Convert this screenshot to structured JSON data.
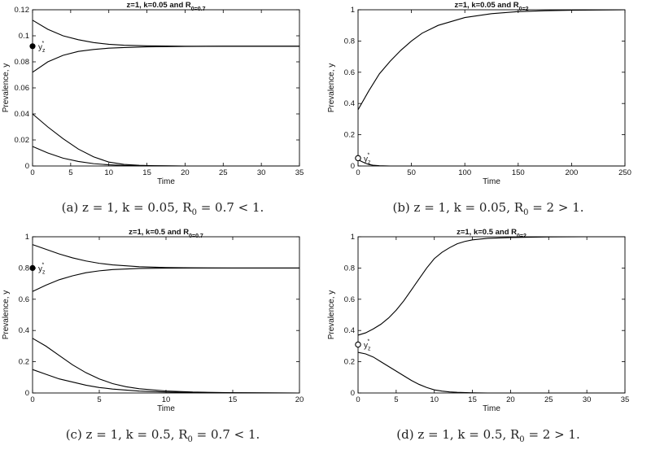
{
  "chart_data": [
    {
      "type": "line",
      "title": "z=1, k=0.05 and R_0=0.7",
      "xlabel": "Time",
      "ylabel": "Prevalence, y",
      "xlim": [
        0,
        35
      ],
      "ylim": [
        0,
        0.12
      ],
      "xticks": [
        "0",
        "5",
        "10",
        "15",
        "20",
        "25",
        "30",
        "35"
      ],
      "yticks": [
        "0",
        "0.02",
        "0.04",
        "0.06",
        "0.08",
        "0.1",
        "0.12"
      ],
      "series": [
        {
          "x": [
            0,
            2,
            4,
            6,
            8,
            10,
            12,
            15,
            20,
            25,
            30,
            35
          ],
          "y": [
            0.112,
            0.105,
            0.1,
            0.097,
            0.0948,
            0.0935,
            0.0928,
            0.0923,
            0.092,
            0.092,
            0.092,
            0.092
          ]
        },
        {
          "x": [
            0,
            2,
            4,
            6,
            8,
            10,
            12,
            15,
            20,
            25,
            30,
            35
          ],
          "y": [
            0.072,
            0.08,
            0.085,
            0.088,
            0.0895,
            0.0905,
            0.091,
            0.0915,
            0.0918,
            0.092,
            0.092,
            0.092
          ]
        },
        {
          "x": [
            0,
            2,
            4,
            6,
            8,
            10,
            12,
            14,
            16,
            20,
            25,
            35
          ],
          "y": [
            0.04,
            0.03,
            0.021,
            0.013,
            0.007,
            0.003,
            0.0012,
            0.0005,
            0.0002,
            0,
            0,
            0
          ]
        },
        {
          "x": [
            0,
            2,
            4,
            6,
            8,
            10,
            12,
            14,
            20,
            35
          ],
          "y": [
            0.015,
            0.01,
            0.006,
            0.0035,
            0.0018,
            0.0009,
            0.0004,
            0.0002,
            0,
            0
          ]
        }
      ],
      "marker": {
        "style": "filled",
        "x": 0,
        "y": 0.092,
        "label": "y_z^*"
      },
      "caption": "(a) z = 1, k = 0.05, R_0 = 0.7 < 1."
    },
    {
      "type": "line",
      "title": "z=1, k=0.05 and R_0=2",
      "xlabel": "Time",
      "ylabel": "Prevalence, y",
      "xlim": [
        0,
        250
      ],
      "ylim": [
        0,
        1
      ],
      "xticks": [
        "0",
        "50",
        "100",
        "150",
        "200",
        "250"
      ],
      "yticks": [
        "0",
        "0.2",
        "0.4",
        "0.6",
        "0.8",
        "1"
      ],
      "series": [
        {
          "x": [
            0,
            10,
            20,
            30,
            40,
            50,
            60,
            75,
            100,
            125,
            150,
            175,
            200,
            250
          ],
          "y": [
            0.36,
            0.48,
            0.59,
            0.67,
            0.74,
            0.8,
            0.85,
            0.9,
            0.95,
            0.975,
            0.988,
            0.994,
            0.997,
            1
          ]
        },
        {
          "x": [
            0,
            3,
            6,
            10,
            14,
            20,
            30,
            50,
            250
          ],
          "y": [
            0.04,
            0.03,
            0.02,
            0.01,
            0.005,
            0.002,
            0,
            0,
            0
          ]
        }
      ],
      "marker": {
        "style": "open",
        "x": 0,
        "y": 0.05,
        "label": "y_z^*"
      },
      "caption": "(b) z = 1, k = 0.05, R_0 = 2 > 1."
    },
    {
      "type": "line",
      "title": "z=1, k=0.5 and R_0=0.7",
      "xlabel": "Time",
      "ylabel": "Prevalence, y",
      "xlim": [
        0,
        20
      ],
      "ylim": [
        0,
        1
      ],
      "xticks": [
        "0",
        "5",
        "10",
        "15",
        "20"
      ],
      "yticks": [
        "0",
        "0.2",
        "0.4",
        "0.6",
        "0.8",
        "1"
      ],
      "series": [
        {
          "x": [
            0,
            1,
            2,
            3,
            4,
            5,
            6,
            8,
            10,
            12,
            15,
            20
          ],
          "y": [
            0.95,
            0.92,
            0.89,
            0.865,
            0.845,
            0.83,
            0.82,
            0.808,
            0.803,
            0.801,
            0.8,
            0.8
          ]
        },
        {
          "x": [
            0,
            1,
            2,
            3,
            4,
            5,
            6,
            8,
            10,
            12,
            15,
            20
          ],
          "y": [
            0.65,
            0.69,
            0.725,
            0.75,
            0.77,
            0.782,
            0.79,
            0.797,
            0.799,
            0.8,
            0.8,
            0.8
          ]
        },
        {
          "x": [
            0,
            1,
            2,
            3,
            4,
            5,
            6,
            7,
            8,
            10,
            12,
            15,
            20
          ],
          "y": [
            0.35,
            0.3,
            0.24,
            0.18,
            0.13,
            0.09,
            0.06,
            0.04,
            0.027,
            0.013,
            0.006,
            0.002,
            0
          ]
        },
        {
          "x": [
            0,
            1,
            2,
            3,
            4,
            5,
            6,
            8,
            10,
            12,
            15,
            20
          ],
          "y": [
            0.15,
            0.12,
            0.09,
            0.07,
            0.05,
            0.035,
            0.025,
            0.012,
            0.006,
            0.003,
            0.001,
            0
          ]
        }
      ],
      "marker": {
        "style": "filled",
        "x": 0,
        "y": 0.8,
        "label": "y_z^*"
      },
      "caption": "(c) z = 1, k = 0.5, R_0 = 0.7 < 1."
    },
    {
      "type": "line",
      "title": "z=1, k=0.5 and R_0=2",
      "xlabel": "Time",
      "ylabel": "Prevalence, y",
      "xlim": [
        0,
        35
      ],
      "ylim": [
        0,
        1
      ],
      "xticks": [
        "0",
        "5",
        "10",
        "15",
        "20",
        "25",
        "30",
        "35"
      ],
      "yticks": [
        "0",
        "0.2",
        "0.4",
        "0.6",
        "0.8",
        "1"
      ],
      "series": [
        {
          "x": [
            0,
            1,
            2,
            3,
            4,
            5,
            6,
            7,
            8,
            9,
            10,
            11,
            12,
            13,
            14,
            15,
            17,
            20,
            25,
            30,
            35
          ],
          "y": [
            0.37,
            0.385,
            0.41,
            0.44,
            0.48,
            0.53,
            0.59,
            0.66,
            0.73,
            0.8,
            0.86,
            0.9,
            0.93,
            0.955,
            0.97,
            0.98,
            0.99,
            0.995,
            0.999,
            1,
            1
          ]
        },
        {
          "x": [
            0,
            1,
            2,
            3,
            4,
            5,
            6,
            7,
            8,
            9,
            10,
            11,
            12,
            13,
            15,
            17,
            20,
            35
          ],
          "y": [
            0.26,
            0.25,
            0.23,
            0.2,
            0.17,
            0.14,
            0.11,
            0.08,
            0.055,
            0.035,
            0.02,
            0.012,
            0.007,
            0.004,
            0.001,
            0,
            0,
            0
          ]
        }
      ],
      "marker": {
        "style": "open",
        "x": 0,
        "y": 0.31,
        "label": "y_z^*"
      },
      "caption": "(d) z = 1, k = 0.5, R_0 = 2 > 1."
    }
  ]
}
